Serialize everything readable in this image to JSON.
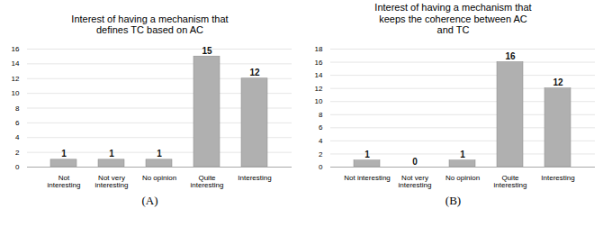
{
  "chart_data": [
    {
      "type": "bar",
      "title": "Interest of having a mechanism that\ndefines TC based on AC",
      "categories": [
        "Not\ninteresting",
        "Not very\ninteresting",
        "No opinion",
        "Quite\ninteresting",
        "Interesting"
      ],
      "values": [
        1,
        1,
        1,
        15,
        12
      ],
      "color": "#b0b0b0",
      "ylim": [
        0,
        16
      ],
      "yticks": [
        0,
        2,
        4,
        6,
        8,
        10,
        12,
        14,
        16
      ],
      "grid": true,
      "data_labels": true,
      "xlabel": "(A)"
    },
    {
      "type": "bar",
      "title": "Interest of having a mechanism that\nkeeps the coherence between AC\nand TC",
      "categories": [
        "Not interesting",
        "Not very\ninteresting",
        "No opinion",
        "Quite\ninteresting",
        "Interesting"
      ],
      "values": [
        1,
        0,
        1,
        16,
        12
      ],
      "color": "#b0b0b0",
      "ylim": [
        0,
        18
      ],
      "yticks": [
        0,
        2,
        4,
        6,
        8,
        10,
        12,
        14,
        16,
        18
      ],
      "grid": true,
      "data_labels": true,
      "xlabel": "(B)"
    }
  ]
}
